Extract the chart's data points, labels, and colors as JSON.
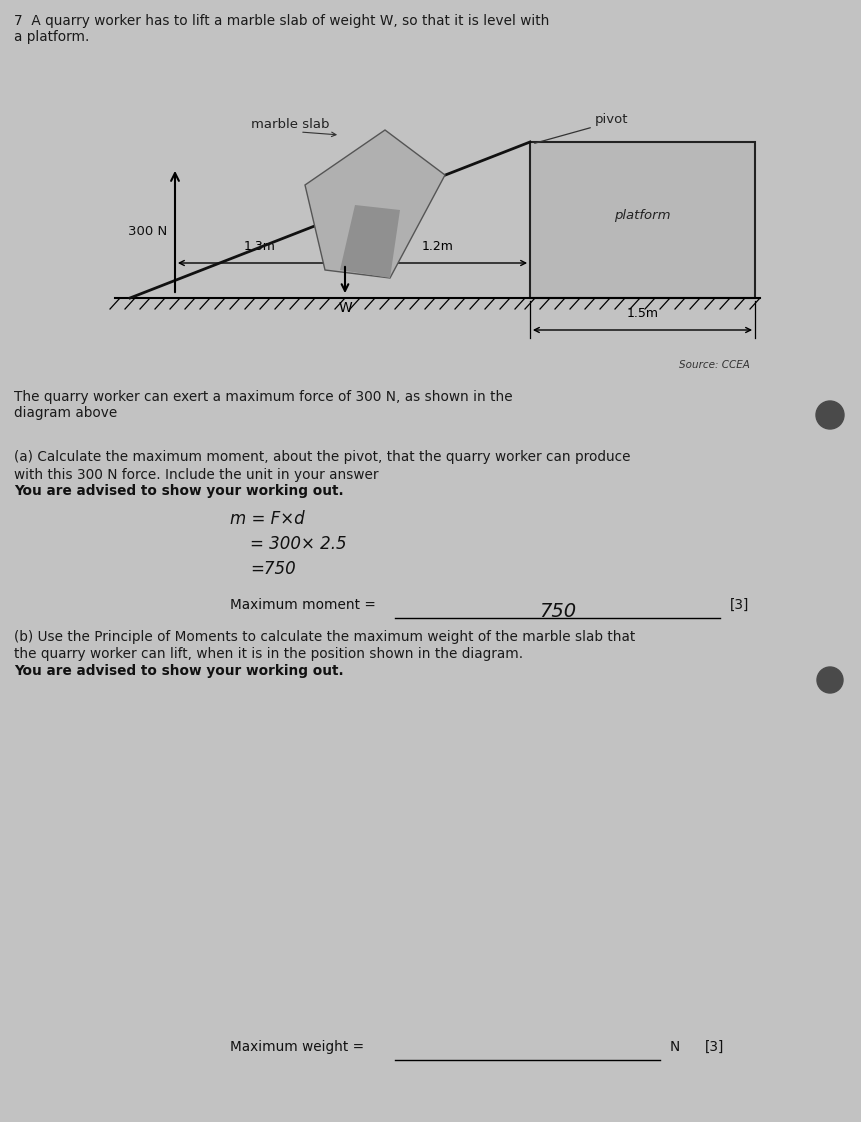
{
  "bg_color": "#c2c2c2",
  "title_text": "7  A quarry worker has to lift a marble slab of weight W, so that it is level with\na platform.",
  "description_text": "The quarry worker can exert a maximum force of 300 N, as shown in the\ndiagram above",
  "part_a_title_line1": "(a) Calculate the maximum moment, about the pivot, that the quarry worker can produce",
  "part_a_title_line2": "with this 300 N force. Include the unit in your answer",
  "part_a_title_line3": "You are advised to show your working out.",
  "working_a_line1": "m = F×d",
  "working_a_line2": "= 300× 2.5",
  "working_a_line3": "=750",
  "max_moment_label": "Maximum moment =",
  "max_moment_value": "750",
  "max_moment_mark": "[3]",
  "part_b_title_line1": "(b) Use the Principle of Moments to calculate the maximum weight of the marble slab that",
  "part_b_title_line2": "the quarry worker can lift, when it is in the position shown in the diagram.",
  "part_b_title_line3": "You are advised to show your working out.",
  "max_weight_label": "Maximum weight =",
  "max_weight_unit": "N",
  "max_weight_mark": "[3]",
  "diagram": {
    "force_label": "300 N",
    "marble_label": "marble slab",
    "pivot_label": "pivot",
    "platform_label": "platform",
    "dist1_label": "1.3m",
    "dist2_label": "1.2m",
    "weight_label": "W",
    "platform_width_label": "1.5m",
    "source_label": "Source: CCEA"
  }
}
